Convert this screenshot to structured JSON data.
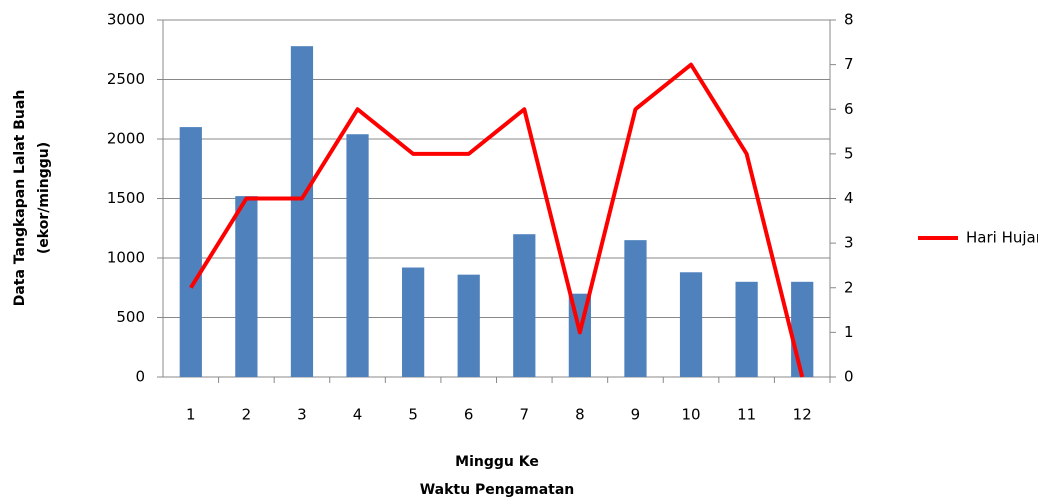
{
  "chart_data": {
    "type": "combo",
    "categories": [
      "1",
      "2",
      "3",
      "4",
      "5",
      "6",
      "7",
      "8",
      "9",
      "10",
      "11",
      "12"
    ],
    "series": [
      {
        "type": "bar",
        "color": "#4f81bd",
        "values": [
          2100,
          1520,
          2780,
          2040,
          920,
          860,
          1200,
          700,
          1150,
          880,
          800,
          800
        ]
      },
      {
        "type": "line",
        "name": "Hari Hujan",
        "color": "#ff0000",
        "axis": "y2",
        "values": [
          2,
          4,
          4,
          6,
          5,
          5,
          6,
          1,
          6,
          7,
          5,
          0
        ]
      }
    ],
    "ylim": [
      0,
      3000
    ],
    "yticks": [
      0,
      500,
      1000,
      1500,
      2000,
      2500,
      3000
    ],
    "y2lim": [
      0,
      8
    ],
    "y2ticks": [
      0,
      1,
      2,
      3,
      4,
      5,
      6,
      7,
      8
    ],
    "ylabel": [
      "Data Tangkapan  Lalat Buah",
      "(ekor/minggu)"
    ],
    "xlabel": [
      "Minggu Ke",
      "Waktu Pengamatan"
    ],
    "grid": true,
    "legend": "right"
  }
}
